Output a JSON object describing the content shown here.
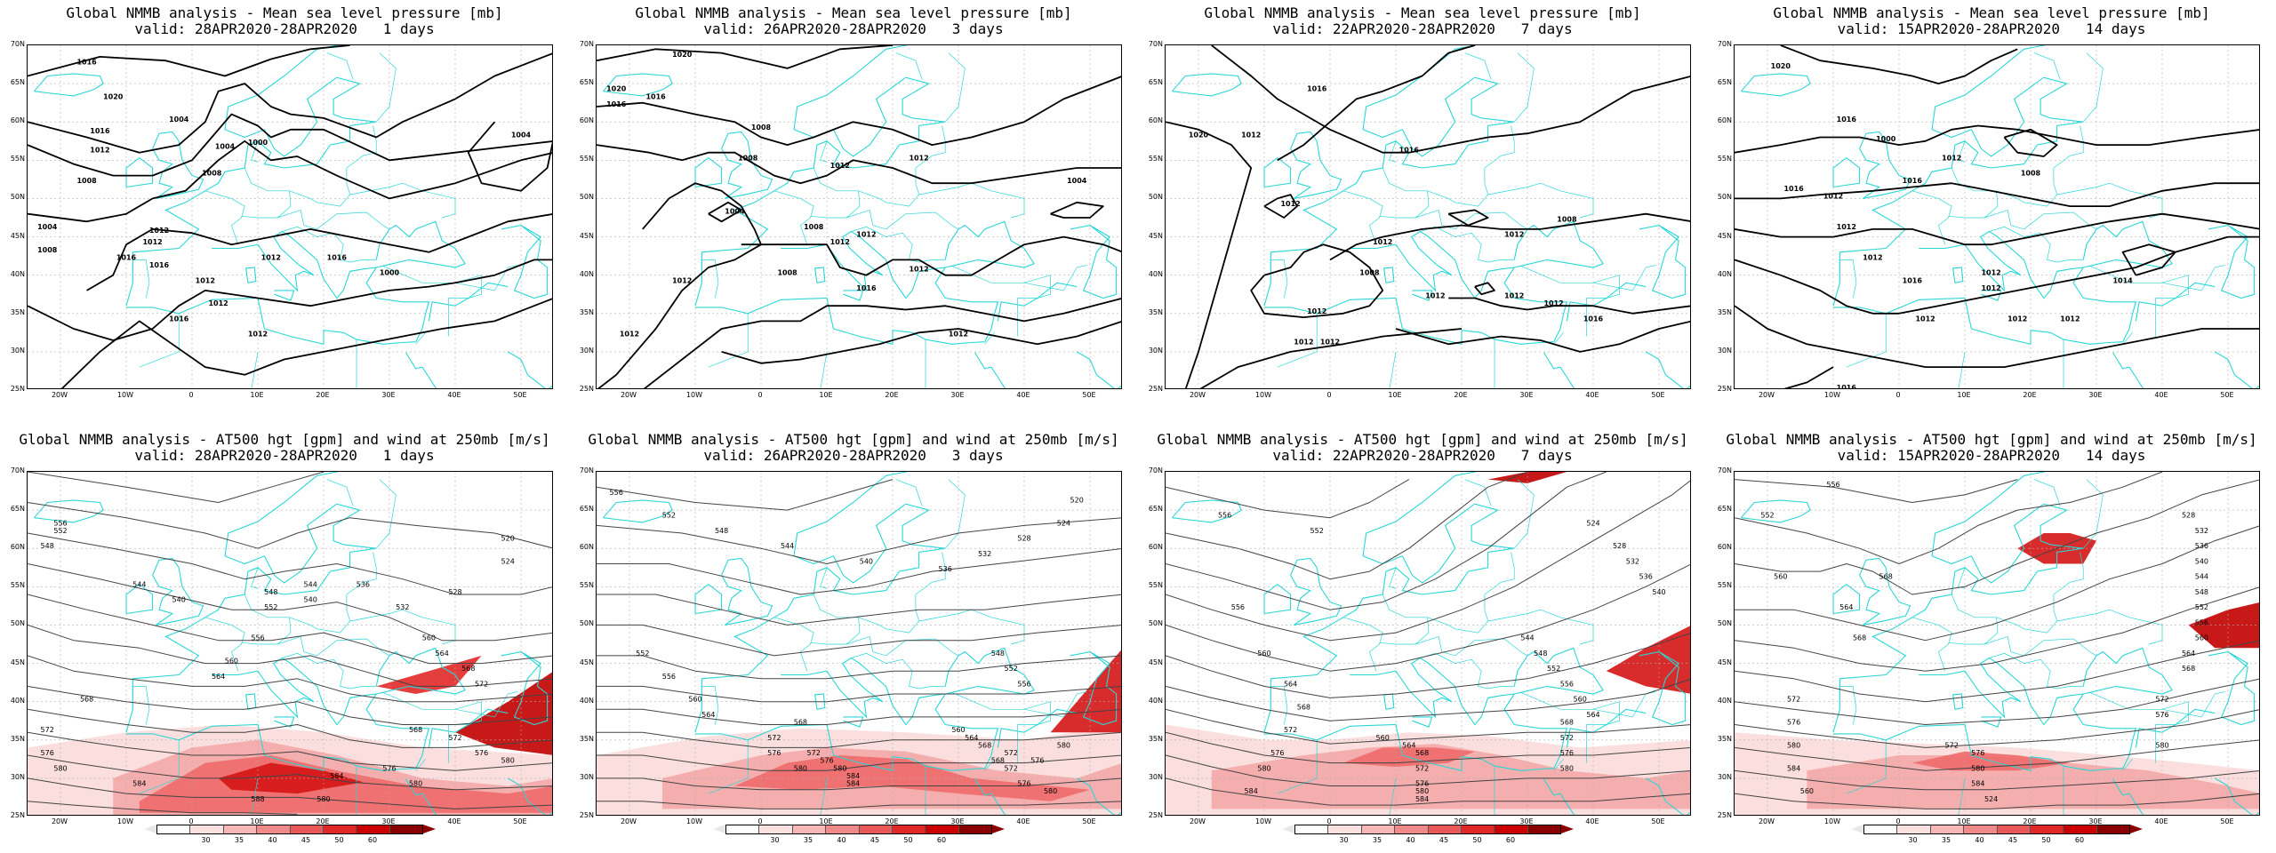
{
  "panels": [
    {
      "title": "Global NMMB analysis - Mean sea level pressure [mb]",
      "valid": "valid: 28APR2020-28APR2020   1 days"
    },
    {
      "title": "Global NMMB analysis - Mean sea level pressure [mb]",
      "valid": "valid: 26APR2020-28APR2020   3 days"
    },
    {
      "title": "Global NMMB analysis - Mean sea level pressure [mb]",
      "valid": "valid: 22APR2020-28APR2020   7 days"
    },
    {
      "title": "Global NMMB analysis - Mean sea level pressure [mb]",
      "valid": "valid: 15APR2020-28APR2020   14 days"
    },
    {
      "title": "Global NMMB analysis - AT500 hgt [gpm] and wind at 250mb [m/s]",
      "valid": "valid: 28APR2020-28APR2020   1 days"
    },
    {
      "title": "Global NMMB analysis - AT500 hgt [gpm] and wind at 250mb [m/s]",
      "valid": "valid: 26APR2020-28APR2020   3 days"
    },
    {
      "title": "Global NMMB analysis - AT500 hgt [gpm] and wind at 250mb [m/s]",
      "valid": "valid: 22APR2020-28APR2020   7 days"
    },
    {
      "title": "Global NMMB analysis - AT500 hgt [gpm] and wind at 250mb [m/s]",
      "valid": "valid: 15APR2020-28APR2020   14 days"
    }
  ],
  "lat_ticks": [
    "70N",
    "65N",
    "60N",
    "55N",
    "50N",
    "45N",
    "40N",
    "35N",
    "30N",
    "25N"
  ],
  "lon_ticks": [
    "20W",
    "10W",
    "0",
    "10E",
    "20E",
    "30E",
    "40E",
    "50E"
  ],
  "colorbar": {
    "labels": [
      "30",
      "35",
      "40",
      "45",
      "50",
      "60"
    ],
    "colors": [
      "#ffffff",
      "#fbe0e0",
      "#f6b7b7",
      "#f08a8a",
      "#e85858",
      "#e02828",
      "#cc0000",
      "#8a0000"
    ]
  },
  "colors": {
    "coast": "#2ad6d6",
    "isobar": "#000000",
    "isohypse": "#444444",
    "grid": "#b0b0b0"
  },
  "contours": {
    "mslp_1": [
      "1016",
      "1020",
      "1016",
      "1012",
      "1008",
      "1004",
      "1000",
      "1004",
      "1008",
      "1012",
      "1016",
      "1004",
      "1008",
      "1012",
      "1016",
      "1012",
      "1012",
      "1016",
      "1012",
      "1012",
      "1016",
      "1000",
      "1004"
    ],
    "mslp_3": [
      "1020",
      "1016",
      "1020",
      "1016",
      "1008",
      "1008",
      "1012",
      "1012",
      "1004",
      "1008",
      "1012",
      "1008",
      "1012",
      "1012",
      "1016",
      "1012",
      "1012",
      "1012",
      "1004"
    ],
    "mslp_7": [
      "1020",
      "1016",
      "1012",
      "1012",
      "1016",
      "1012",
      "1012",
      "1008",
      "1012",
      "1012",
      "1016",
      "1012",
      "1008",
      "1012",
      "1012",
      "1012"
    ],
    "mslp_14": [
      "1020",
      "1016",
      "1000",
      "1008",
      "1012",
      "1016",
      "1016",
      "1012",
      "1012",
      "1012",
      "1012",
      "1012",
      "1016",
      "1012",
      "1012",
      "1014",
      "1012",
      "1016"
    ],
    "z500_1": [
      "556",
      "552",
      "548",
      "544",
      "540",
      "536",
      "532",
      "528",
      "524",
      "520",
      "544",
      "540",
      "548",
      "552",
      "556",
      "560",
      "564",
      "568",
      "572",
      "576",
      "580",
      "584",
      "588",
      "580",
      "584",
      "568",
      "572",
      "576",
      "580",
      "560",
      "564",
      "568",
      "572",
      "576",
      "580"
    ],
    "z500_3": [
      "556",
      "552",
      "548",
      "544",
      "540",
      "536",
      "532",
      "528",
      "524",
      "520",
      "552",
      "556",
      "560",
      "564",
      "568",
      "572",
      "576",
      "580",
      "584",
      "572",
      "576",
      "580",
      "584",
      "568",
      "572",
      "576",
      "580",
      "560",
      "564",
      "568",
      "572",
      "576",
      "580",
      "548",
      "552",
      "556"
    ],
    "z500_7": [
      "556",
      "552",
      "556",
      "560",
      "564",
      "568",
      "572",
      "576",
      "580",
      "584",
      "560",
      "564",
      "568",
      "572",
      "576",
      "580",
      "584",
      "544",
      "548",
      "552",
      "556",
      "560",
      "564",
      "568",
      "572",
      "576",
      "580",
      "524",
      "528",
      "532",
      "536",
      "540"
    ],
    "z500_14": [
      "556",
      "552",
      "560",
      "564",
      "568",
      "572",
      "576",
      "580",
      "584",
      "560",
      "568",
      "572",
      "576",
      "580",
      "584",
      "524",
      "528",
      "532",
      "536",
      "540",
      "544",
      "548",
      "552",
      "556",
      "560",
      "564",
      "568",
      "572",
      "576",
      "580"
    ]
  }
}
